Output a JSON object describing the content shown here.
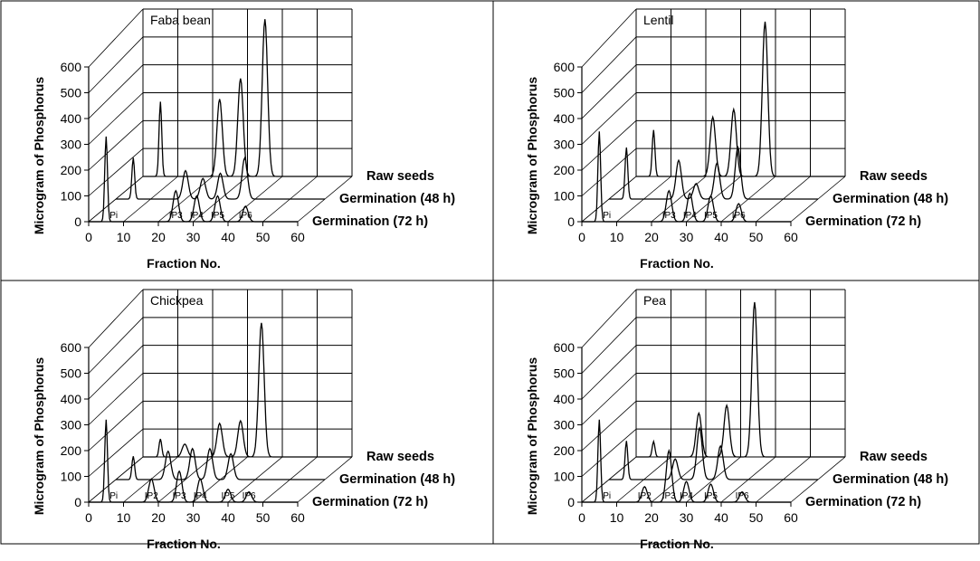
{
  "figure": {
    "xlabel": "Fraction No.",
    "ylabel": "Microgram of Phosphorus",
    "series_labels": [
      "Raw seeds",
      "Germination (48 h)",
      "Germination (72 h)"
    ],
    "x_ticks": [
      "0",
      "10",
      "20",
      "30",
      "40",
      "50",
      "60"
    ],
    "y_ticks": [
      "0",
      "100",
      "200",
      "300",
      "400",
      "500",
      "600"
    ]
  },
  "chart_data": [
    {
      "type": "line",
      "title": "Faba bean",
      "xlabel": "Fraction No.",
      "ylabel": "Microgram of Phosphorus",
      "xlim": [
        0,
        60
      ],
      "ylim": [
        0,
        600
      ],
      "peak_labels": [
        "Pi",
        "IP3",
        "IP4",
        "IP5",
        "IP6"
      ],
      "series": [
        {
          "name": "Raw seeds",
          "peaks": [
            [
              5,
              290
            ],
            [
              22,
              300
            ],
            [
              28,
              380
            ],
            [
              35,
              610
            ]
          ]
        },
        {
          "name": "Germination (48 h)",
          "peaks": [
            [
              5,
              160
            ],
            [
              20,
              110
            ],
            [
              25,
              80
            ],
            [
              30,
              100
            ],
            [
              37,
              160
            ]
          ]
        },
        {
          "name": "Germination (72 h)",
          "peaks": [
            [
              5,
              330
            ],
            [
              25,
              120
            ],
            [
              31,
              100
            ],
            [
              37,
              100
            ],
            [
              45,
              60
            ]
          ]
        }
      ]
    },
    {
      "type": "line",
      "title": "Lentil",
      "xlabel": "Fraction No.",
      "ylabel": "Microgram of Phosphorus",
      "xlim": [
        0,
        60
      ],
      "ylim": [
        0,
        600
      ],
      "peak_labels": [
        "Pi",
        "IP3",
        "IP4",
        "IP5",
        "IP6"
      ],
      "series": [
        {
          "name": "Raw seeds",
          "peaks": [
            [
              5,
              180
            ],
            [
              22,
              230
            ],
            [
              28,
              260
            ],
            [
              37,
              600
            ]
          ]
        },
        {
          "name": "Germination (48 h)",
          "peaks": [
            [
              5,
              200
            ],
            [
              20,
              150
            ],
            [
              25,
              60
            ],
            [
              31,
              140
            ],
            [
              37,
              200
            ]
          ]
        },
        {
          "name": "Germination (72 h)",
          "peaks": [
            [
              5,
              350
            ],
            [
              25,
              120
            ],
            [
              31,
              110
            ],
            [
              37,
              100
            ],
            [
              45,
              70
            ]
          ]
        }
      ]
    },
    {
      "type": "line",
      "title": "Chickpea",
      "xlabel": "Fraction No.",
      "ylabel": "Microgram of Phosphorus",
      "xlim": [
        0,
        60
      ],
      "ylim": [
        0,
        600
      ],
      "peak_labels": [
        "Pi",
        "IP2",
        "IP3",
        "IP4",
        "IP5",
        "IP6"
      ],
      "series": [
        {
          "name": "Raw seeds",
          "peaks": [
            [
              5,
              70
            ],
            [
              12,
              50
            ],
            [
              22,
              130
            ],
            [
              28,
              140
            ],
            [
              34,
              520
            ]
          ]
        },
        {
          "name": "Germination (48 h)",
          "peaks": [
            [
              5,
              90
            ],
            [
              15,
              110
            ],
            [
              22,
              120
            ],
            [
              27,
              120
            ],
            [
              33,
              100
            ]
          ]
        },
        {
          "name": "Germination (72 h)",
          "peaks": [
            [
              5,
              320
            ],
            [
              18,
              90
            ],
            [
              26,
              120
            ],
            [
              32,
              90
            ],
            [
              40,
              50
            ],
            [
              46,
              40
            ]
          ]
        }
      ]
    },
    {
      "type": "line",
      "title": "Pea",
      "xlabel": "Fraction No.",
      "ylabel": "Microgram of Phosphorus",
      "xlim": [
        0,
        60
      ],
      "ylim": [
        0,
        600
      ],
      "peak_labels": [
        "Pi",
        "IP2",
        "IP3",
        "IP4",
        "IP5",
        "IP6"
      ],
      "series": [
        {
          "name": "Raw seeds",
          "peaks": [
            [
              5,
              60
            ],
            [
              18,
              170
            ],
            [
              26,
              200
            ],
            [
              34,
              600
            ]
          ]
        },
        {
          "name": "Germination (48 h)",
          "peaks": [
            [
              5,
              150
            ],
            [
              19,
              80
            ],
            [
              26,
              200
            ],
            [
              32,
              130
            ]
          ]
        },
        {
          "name": "Germination (72 h)",
          "peaks": [
            [
              5,
              320
            ],
            [
              18,
              60
            ],
            [
              25,
              200
            ],
            [
              30,
              80
            ],
            [
              37,
              70
            ],
            [
              46,
              40
            ]
          ]
        }
      ]
    }
  ]
}
